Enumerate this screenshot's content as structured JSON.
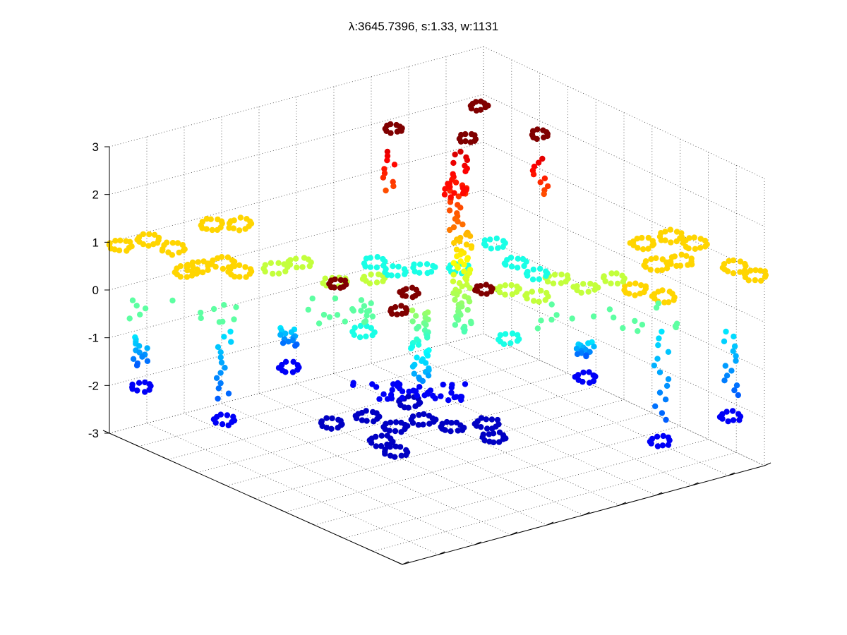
{
  "chart_data": {
    "type": "scatter",
    "subtype": "3d-scatter",
    "title": "λ:3645.7396, s:1.33, w:1131",
    "xlabel": "",
    "ylabel": "",
    "zlabel": "",
    "zlim": [
      -3,
      3
    ],
    "z_ticks": [
      "3",
      "2",
      "1",
      "0",
      "-1",
      "-2",
      "-3"
    ],
    "x_tick_count": 11,
    "y_tick_count": 11,
    "grid": true,
    "box": "three back walls with dotted grid",
    "colormap": "jet",
    "color_encodes": "z",
    "approx_point_count": 1131,
    "clusters": [
      {
        "region": "top center column",
        "z_range": [
          1.8,
          3.0
        ],
        "colors": [
          "dark red",
          "red",
          "orange"
        ]
      },
      {
        "region": "center vertical column",
        "z_range": [
          -2.0,
          1.8
        ],
        "colors": [
          "red",
          "orange",
          "yellow",
          "green",
          "cyan"
        ]
      },
      {
        "region": "left plateau",
        "z_range": [
          0.8,
          1.2
        ],
        "colors": [
          "orange"
        ]
      },
      {
        "region": "right plateau",
        "z_range": [
          0.8,
          1.2
        ],
        "colors": [
          "orange"
        ]
      },
      {
        "region": "left and right pillars",
        "z_range": [
          -2.3,
          -0.5
        ],
        "colors": [
          "cyan",
          "blue",
          "dark blue"
        ]
      },
      {
        "region": "front floor cross",
        "z_range": [
          -3.0,
          -2.6
        ],
        "colors": [
          "light blue",
          "cyan"
        ]
      },
      {
        "region": "central ring near 0",
        "z_range": [
          -0.3,
          0.3
        ],
        "colors": [
          "yellow",
          "dark red",
          "blue"
        ]
      }
    ]
  }
}
